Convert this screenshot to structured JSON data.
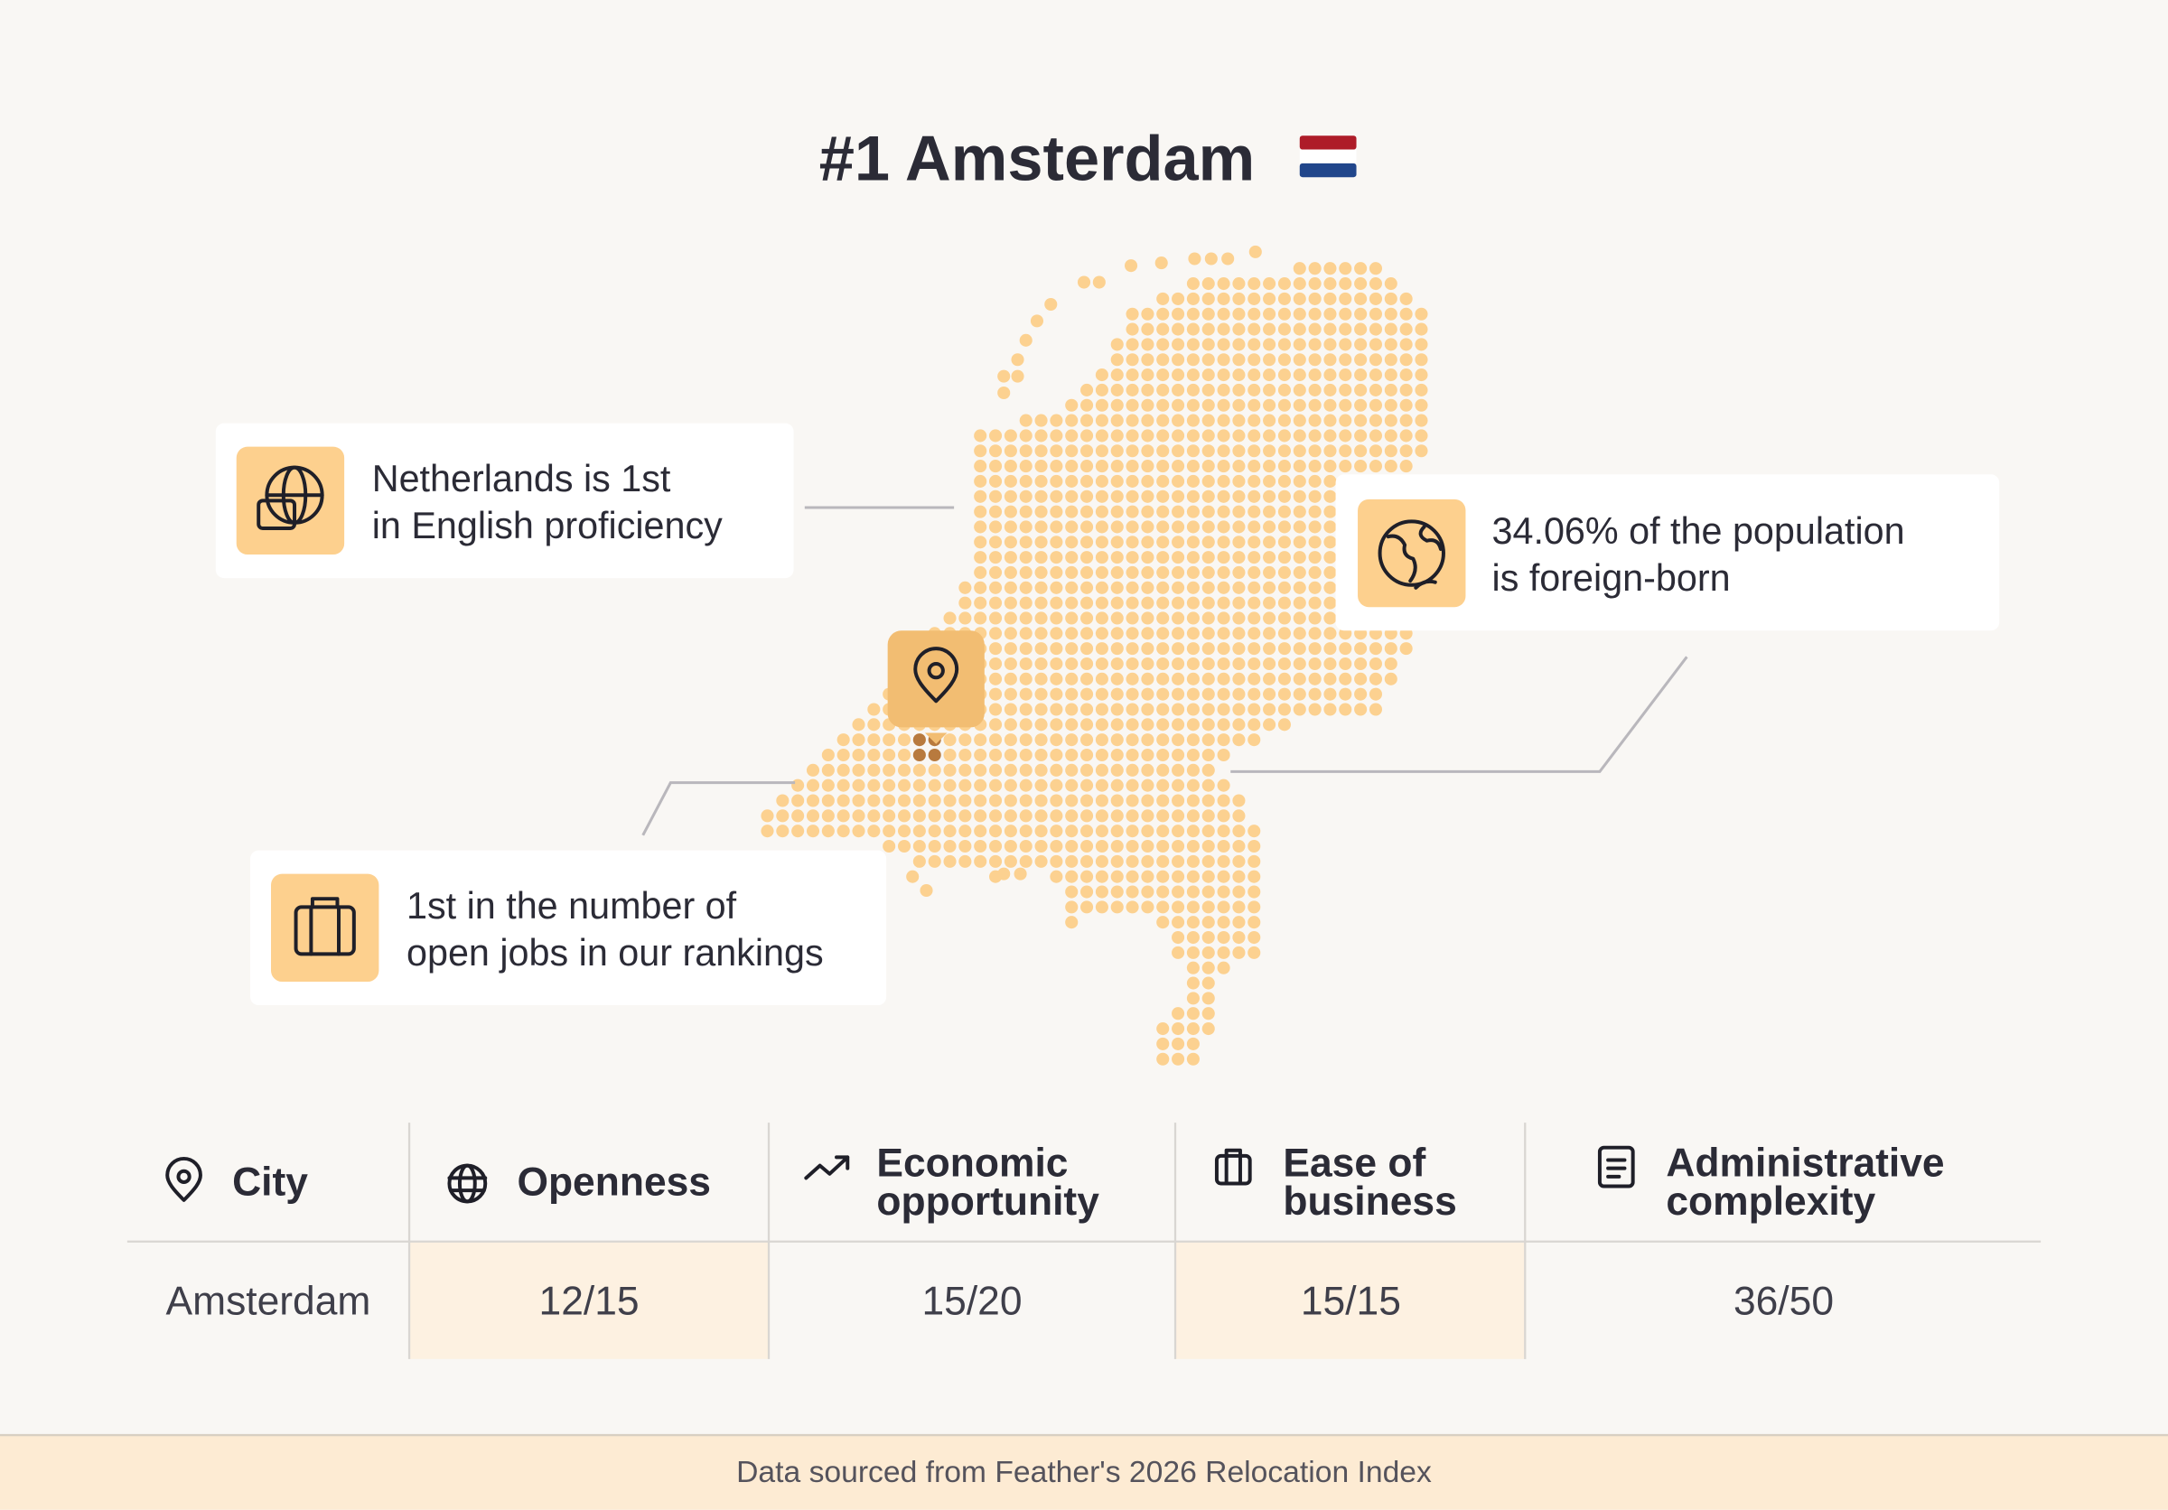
{
  "title": "#1 Amsterdam",
  "callouts": [
    {
      "lines": [
        "Netherlands is 1st",
        "in English proficiency"
      ]
    },
    {
      "lines": [
        "34.06% of the population",
        "is foreign-born"
      ]
    },
    {
      "lines": [
        "1st in the number of",
        "open jobs in our rankings"
      ]
    }
  ],
  "table": {
    "headers": [
      [
        "City"
      ],
      [
        "Openness"
      ],
      [
        "Economic",
        "opportunity"
      ],
      [
        "Ease of",
        "business"
      ],
      [
        "Administrative",
        "complexity"
      ]
    ],
    "rows": [
      [
        "Amsterdam",
        "12/15",
        "15/20",
        "15/15",
        "36/50"
      ]
    ]
  },
  "footer": "Data sourced from Feather's 2026 Relocation Index"
}
